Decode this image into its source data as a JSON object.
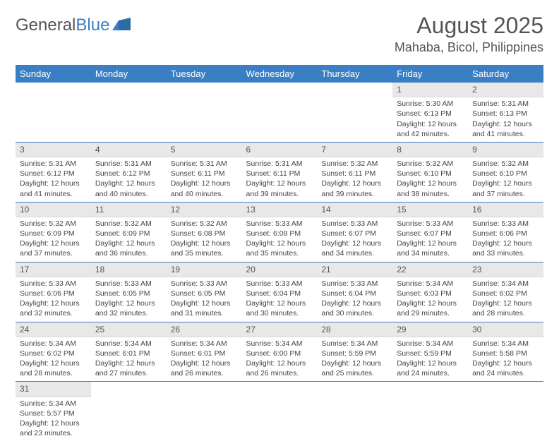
{
  "logo": {
    "text_general": "General",
    "text_blue": "Blue"
  },
  "header": {
    "month_title": "August 2025",
    "location": "Mahaba, Bicol, Philippines"
  },
  "colors": {
    "header_bg": "#3a7fc4",
    "header_fg": "#ffffff",
    "daynum_bg": "#e8e8e8",
    "border": "#3a7fc4"
  },
  "weekdays": [
    "Sunday",
    "Monday",
    "Tuesday",
    "Wednesday",
    "Thursday",
    "Friday",
    "Saturday"
  ],
  "weeks": [
    [
      null,
      null,
      null,
      null,
      null,
      {
        "d": "1",
        "sr": "5:30 AM",
        "ss": "6:13 PM",
        "dl": "12 hours and 42 minutes."
      },
      {
        "d": "2",
        "sr": "5:31 AM",
        "ss": "6:13 PM",
        "dl": "12 hours and 41 minutes."
      }
    ],
    [
      {
        "d": "3",
        "sr": "5:31 AM",
        "ss": "6:12 PM",
        "dl": "12 hours and 41 minutes."
      },
      {
        "d": "4",
        "sr": "5:31 AM",
        "ss": "6:12 PM",
        "dl": "12 hours and 40 minutes."
      },
      {
        "d": "5",
        "sr": "5:31 AM",
        "ss": "6:11 PM",
        "dl": "12 hours and 40 minutes."
      },
      {
        "d": "6",
        "sr": "5:31 AM",
        "ss": "6:11 PM",
        "dl": "12 hours and 39 minutes."
      },
      {
        "d": "7",
        "sr": "5:32 AM",
        "ss": "6:11 PM",
        "dl": "12 hours and 39 minutes."
      },
      {
        "d": "8",
        "sr": "5:32 AM",
        "ss": "6:10 PM",
        "dl": "12 hours and 38 minutes."
      },
      {
        "d": "9",
        "sr": "5:32 AM",
        "ss": "6:10 PM",
        "dl": "12 hours and 37 minutes."
      }
    ],
    [
      {
        "d": "10",
        "sr": "5:32 AM",
        "ss": "6:09 PM",
        "dl": "12 hours and 37 minutes."
      },
      {
        "d": "11",
        "sr": "5:32 AM",
        "ss": "6:09 PM",
        "dl": "12 hours and 36 minutes."
      },
      {
        "d": "12",
        "sr": "5:32 AM",
        "ss": "6:08 PM",
        "dl": "12 hours and 35 minutes."
      },
      {
        "d": "13",
        "sr": "5:33 AM",
        "ss": "6:08 PM",
        "dl": "12 hours and 35 minutes."
      },
      {
        "d": "14",
        "sr": "5:33 AM",
        "ss": "6:07 PM",
        "dl": "12 hours and 34 minutes."
      },
      {
        "d": "15",
        "sr": "5:33 AM",
        "ss": "6:07 PM",
        "dl": "12 hours and 34 minutes."
      },
      {
        "d": "16",
        "sr": "5:33 AM",
        "ss": "6:06 PM",
        "dl": "12 hours and 33 minutes."
      }
    ],
    [
      {
        "d": "17",
        "sr": "5:33 AM",
        "ss": "6:06 PM",
        "dl": "12 hours and 32 minutes."
      },
      {
        "d": "18",
        "sr": "5:33 AM",
        "ss": "6:05 PM",
        "dl": "12 hours and 32 minutes."
      },
      {
        "d": "19",
        "sr": "5:33 AM",
        "ss": "6:05 PM",
        "dl": "12 hours and 31 minutes."
      },
      {
        "d": "20",
        "sr": "5:33 AM",
        "ss": "6:04 PM",
        "dl": "12 hours and 30 minutes."
      },
      {
        "d": "21",
        "sr": "5:33 AM",
        "ss": "6:04 PM",
        "dl": "12 hours and 30 minutes."
      },
      {
        "d": "22",
        "sr": "5:34 AM",
        "ss": "6:03 PM",
        "dl": "12 hours and 29 minutes."
      },
      {
        "d": "23",
        "sr": "5:34 AM",
        "ss": "6:02 PM",
        "dl": "12 hours and 28 minutes."
      }
    ],
    [
      {
        "d": "24",
        "sr": "5:34 AM",
        "ss": "6:02 PM",
        "dl": "12 hours and 28 minutes."
      },
      {
        "d": "25",
        "sr": "5:34 AM",
        "ss": "6:01 PM",
        "dl": "12 hours and 27 minutes."
      },
      {
        "d": "26",
        "sr": "5:34 AM",
        "ss": "6:01 PM",
        "dl": "12 hours and 26 minutes."
      },
      {
        "d": "27",
        "sr": "5:34 AM",
        "ss": "6:00 PM",
        "dl": "12 hours and 26 minutes."
      },
      {
        "d": "28",
        "sr": "5:34 AM",
        "ss": "5:59 PM",
        "dl": "12 hours and 25 minutes."
      },
      {
        "d": "29",
        "sr": "5:34 AM",
        "ss": "5:59 PM",
        "dl": "12 hours and 24 minutes."
      },
      {
        "d": "30",
        "sr": "5:34 AM",
        "ss": "5:58 PM",
        "dl": "12 hours and 24 minutes."
      }
    ],
    [
      {
        "d": "31",
        "sr": "5:34 AM",
        "ss": "5:57 PM",
        "dl": "12 hours and 23 minutes."
      },
      null,
      null,
      null,
      null,
      null,
      null
    ]
  ],
  "labels": {
    "sunrise": "Sunrise:",
    "sunset": "Sunset:",
    "daylight": "Daylight:"
  }
}
